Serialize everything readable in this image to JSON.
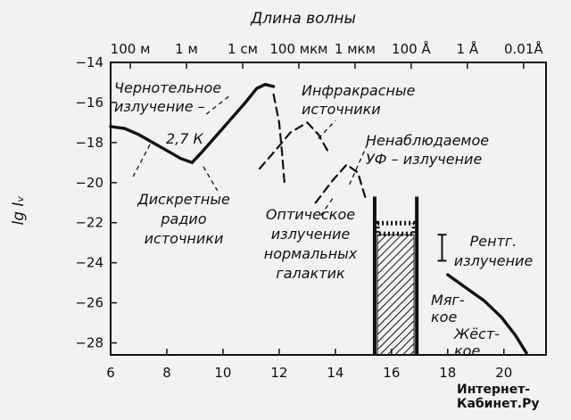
{
  "chart_data": {
    "type": "line",
    "top_axis_title": "Длина волны",
    "top_ticks": [
      {
        "label": "100 м",
        "x": 6.7
      },
      {
        "label": "1 м",
        "x": 8.7
      },
      {
        "label": "1 см",
        "x": 10.7
      },
      {
        "label": "100 мкм",
        "x": 12.7
      },
      {
        "label": "1 мкм",
        "x": 14.7
      },
      {
        "label": "100 Å",
        "x": 16.7
      },
      {
        "label": "1 Å",
        "x": 18.7
      },
      {
        "label": "0.01Å",
        "x": 20.7
      }
    ],
    "ylabel": "lg Iᵥ",
    "xlim": [
      6,
      21.5
    ],
    "ylim": [
      -28.6,
      -14
    ],
    "x_ticks": [
      6,
      8,
      10,
      12,
      14,
      16,
      18,
      20
    ],
    "y_ticks": [
      -14,
      -16,
      -18,
      -20,
      -22,
      -24,
      -26,
      -28
    ],
    "series": [
      {
        "name": "radio",
        "style": "solid",
        "x": [
          6.0,
          6.5,
          7.0,
          7.5,
          8.0,
          8.5,
          8.9
        ],
        "y": [
          -17.2,
          -17.3,
          -17.6,
          -18.0,
          -18.4,
          -18.8,
          -19.0
        ]
      },
      {
        "name": "blackbody",
        "style": "solid",
        "x": [
          8.9,
          9.3,
          9.8,
          10.3,
          10.8,
          11.2,
          11.5,
          11.8
        ],
        "y": [
          -19.0,
          -18.4,
          -17.6,
          -16.8,
          -16.0,
          -15.3,
          -15.1,
          -15.2
        ]
      },
      {
        "name": "blackbody-tail",
        "style": "dashed",
        "x": [
          11.8,
          12.0,
          12.1,
          12.2
        ],
        "y": [
          -15.6,
          -17.0,
          -18.5,
          -20.2
        ]
      },
      {
        "name": "infrared",
        "style": "dashed",
        "x": [
          11.3,
          11.8,
          12.4,
          13.0,
          13.4,
          13.8
        ],
        "y": [
          -19.3,
          -18.5,
          -17.5,
          -17.0,
          -17.6,
          -18.6
        ]
      },
      {
        "name": "optical",
        "style": "dashed",
        "x": [
          13.3,
          13.9,
          14.4,
          14.8,
          15.1
        ],
        "y": [
          -21.0,
          -19.9,
          -19.1,
          -19.5,
          -20.9
        ]
      },
      {
        "name": "xray",
        "style": "solid",
        "x": [
          18.0,
          18.6,
          19.3,
          19.9,
          20.4,
          20.8
        ],
        "y": [
          -24.6,
          -25.2,
          -25.9,
          -26.7,
          -27.6,
          -28.5
        ]
      }
    ],
    "vertical_lines": [
      {
        "x": 15.4,
        "y_top": -20.7
      },
      {
        "x": 16.9,
        "y_top": -20.7
      }
    ],
    "hatched_band": {
      "x0": 15.5,
      "x1": 16.8,
      "y_top": -22.6
    },
    "error_bar": {
      "x": 17.8,
      "y_low": -23.9,
      "y_high": -22.6
    },
    "annotations": [
      {
        "id": "blackbody",
        "lines": [
          "Чернотельное",
          "излучение –"
        ]
      },
      {
        "id": "k27",
        "lines": [
          "2,7 К"
        ]
      },
      {
        "id": "infrared",
        "lines": [
          "Инфракрасные",
          "источники"
        ]
      },
      {
        "id": "uv",
        "lines": [
          "Ненаблюдаемое",
          "УФ – излучение"
        ]
      },
      {
        "id": "discrete",
        "lines": [
          "Дискретные",
          "радио",
          "источники"
        ]
      },
      {
        "id": "optical",
        "lines": [
          "Оптическое",
          "излучение",
          "нормальных",
          "галактик"
        ]
      },
      {
        "id": "xray",
        "lines": [
          "Рентг.",
          "излучение"
        ]
      },
      {
        "id": "soft",
        "lines": [
          "Мяг-",
          "кое"
        ]
      },
      {
        "id": "hard",
        "lines": [
          "Жёст-",
          "кое"
        ]
      }
    ],
    "grid": false,
    "legend": "none"
  },
  "watermark": [
    "Интернет-",
    "Кабинет.Ру"
  ]
}
